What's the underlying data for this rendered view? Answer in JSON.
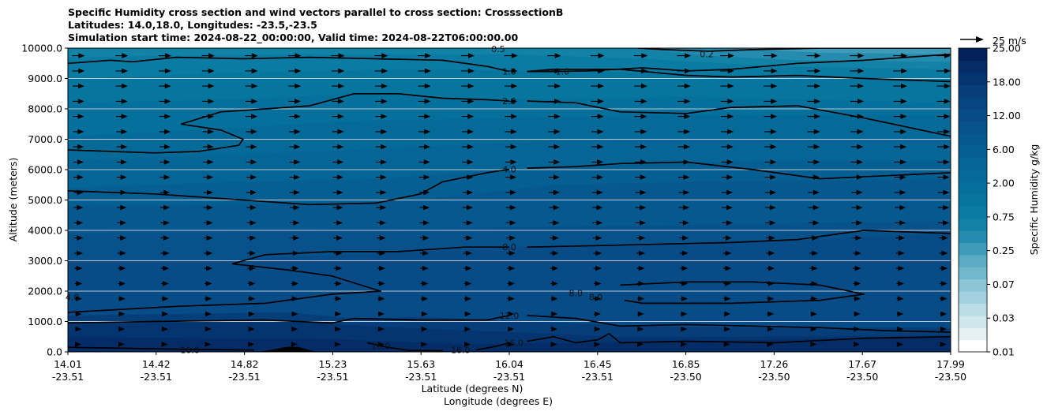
{
  "chart_data": {
    "type": "contour",
    "title_lines": [
      "Specific Humidity cross section and wind vectors parallel to cross section: CrosssectionB",
      "Latitudes: 14.0,18.0, Longitudes: -23.5,-23.5",
      "Simulation start time: 2024-08-22_00:00:00, Valid time: 2024-08-22T06:00:00.00"
    ],
    "xlabel_lat": "Latitude (degrees N)",
    "xlabel_lon": "Longitude (degrees E)",
    "ylabel": "Altitude (meters)",
    "ylim": [
      0,
      10000
    ],
    "xlim": [
      14.01,
      17.99
    ],
    "y_ticks": [
      {
        "value": 0,
        "label": "0.0"
      },
      {
        "value": 1000,
        "label": "1000.0"
      },
      {
        "value": 2000,
        "label": "2000.0"
      },
      {
        "value": 3000,
        "label": "3000.0"
      },
      {
        "value": 4000,
        "label": "4000.0"
      },
      {
        "value": 5000,
        "label": "5000.0"
      },
      {
        "value": 6000,
        "label": "6000.0"
      },
      {
        "value": 7000,
        "label": "7000.0"
      },
      {
        "value": 8000,
        "label": "8000.0"
      },
      {
        "value": 9000,
        "label": "9000.0"
      },
      {
        "value": 10000,
        "label": "10000.0"
      }
    ],
    "x_ticks": [
      {
        "lat": "14.01",
        "lon": "-23.51"
      },
      {
        "lat": "14.42",
        "lon": "-23.51"
      },
      {
        "lat": "14.82",
        "lon": "-23.51"
      },
      {
        "lat": "15.23",
        "lon": "-23.51"
      },
      {
        "lat": "15.63",
        "lon": "-23.51"
      },
      {
        "lat": "16.04",
        "lon": "-23.51"
      },
      {
        "lat": "16.45",
        "lon": "-23.51"
      },
      {
        "lat": "16.85",
        "lon": "-23.50"
      },
      {
        "lat": "17.26",
        "lon": "-23.50"
      },
      {
        "lat": "17.67",
        "lon": "-23.50"
      },
      {
        "lat": "17.99",
        "lon": "-23.50"
      }
    ],
    "grid": "horizontal",
    "colorbar": {
      "label": "Specific Humidity g/kg",
      "levels": [
        0.01,
        0.02,
        0.03,
        0.05,
        0.07,
        0.1,
        0.25,
        0.35,
        0.5,
        0.75,
        1.0,
        1.5,
        2.0,
        3.0,
        4.0,
        5.0,
        6.0,
        8.0,
        10.0,
        12.0,
        14.0,
        16.0,
        18.0,
        20.0,
        22.0,
        25.0
      ],
      "tick_labels": [
        "0.01",
        "0.03",
        "0.07",
        "0.25",
        "0.75",
        "2.00",
        "6.00",
        "12.00",
        "18.00",
        "25.00"
      ],
      "colors": [
        "#ffffff",
        "#e5f1f4",
        "#cfe6ec",
        "#bbdde6",
        "#a4d1df",
        "#8cc5d6",
        "#72b8cd",
        "#5aabc3",
        "#3f9bba",
        "#268caf",
        "#1282a7",
        "#0a7ba2",
        "#06769f",
        "#04709b",
        "#056a98",
        "#056596",
        "#065f92",
        "#06598f",
        "#07528b",
        "#074c87",
        "#074581",
        "#063e7a",
        "#053570",
        "#042c66",
        "#03215a"
      ]
    },
    "contour_labels": [
      {
        "text": "0.5",
        "lat": 15.95,
        "alt": 9970
      },
      {
        "text": "0.2",
        "lat": 16.89,
        "alt": 9800
      },
      {
        "text": "1.0",
        "lat": 16.0,
        "alt": 9230
      },
      {
        "text": "1.0",
        "lat": 16.24,
        "alt": 9230
      },
      {
        "text": "2.0",
        "lat": 16.0,
        "alt": 8260
      },
      {
        "text": "4.0",
        "lat": 16.0,
        "alt": 6010
      },
      {
        "text": "8.0",
        "lat": 16.0,
        "alt": 3450
      },
      {
        "text": "8.0",
        "lat": 16.3,
        "alt": 1930
      },
      {
        "text": "8.0",
        "lat": 16.39,
        "alt": 1800
      },
      {
        "text": "4.0",
        "lat": 14.03,
        "alt": 1800
      },
      {
        "text": "12.0",
        "lat": 16.0,
        "alt": 1200
      },
      {
        "text": "16.0",
        "lat": 14.56,
        "alt": 60
      },
      {
        "text": "16.0",
        "lat": 15.42,
        "alt": 200
      },
      {
        "text": "16.0",
        "lat": 15.78,
        "alt": 60
      },
      {
        "text": "16.0",
        "lat": 16.02,
        "alt": 300
      }
    ],
    "wind_reference": {
      "label": "25 m/s"
    }
  }
}
